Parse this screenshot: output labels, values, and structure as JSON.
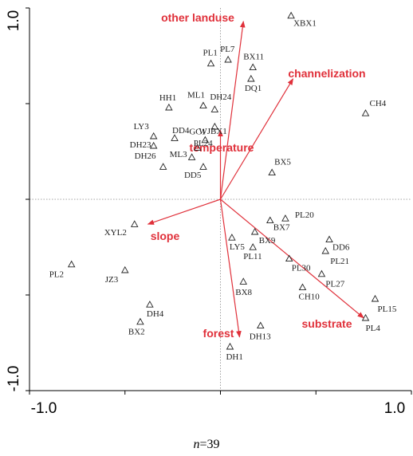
{
  "chart_data": {
    "type": "scatter",
    "title": "",
    "xlabel": "",
    "ylabel": "",
    "xlim": [
      -1.0,
      1.0
    ],
    "ylim": [
      -1.0,
      1.0
    ],
    "x_tick_labels": [
      "-1.0",
      "1.0"
    ],
    "y_tick_labels": [
      "1.0",
      "-1.0"
    ],
    "reference_lines": "dotted lines at x=0 and y=0",
    "point_marker": "open-triangle",
    "arrow_color": "#e0303a",
    "points": [
      {
        "label": "XBX1",
        "x": 0.37,
        "y": 0.96
      },
      {
        "label": "PL1",
        "x": -0.05,
        "y": 0.71
      },
      {
        "label": "PL7",
        "x": 0.04,
        "y": 0.73
      },
      {
        "label": "BX11",
        "x": 0.17,
        "y": 0.69
      },
      {
        "label": "DQ1",
        "x": 0.16,
        "y": 0.63
      },
      {
        "label": "ML1",
        "x": -0.09,
        "y": 0.49
      },
      {
        "label": "DH24",
        "x": -0.03,
        "y": 0.47
      },
      {
        "label": "HH1",
        "x": -0.27,
        "y": 0.48
      },
      {
        "label": "WJBX1",
        "x": -0.03,
        "y": 0.38
      },
      {
        "label": "LY3",
        "x": -0.35,
        "y": 0.33
      },
      {
        "label": "DD4",
        "x": -0.24,
        "y": 0.32
      },
      {
        "label": "GC1",
        "x": -0.08,
        "y": 0.31
      },
      {
        "label": "DH23",
        "x": -0.35,
        "y": 0.28
      },
      {
        "label": "ML3",
        "x": -0.15,
        "y": 0.22
      },
      {
        "label": "PL24",
        "x": -0.12,
        "y": 0.27
      },
      {
        "label": "DD5",
        "x": -0.09,
        "y": 0.17
      },
      {
        "label": "DH26",
        "x": -0.3,
        "y": 0.17
      },
      {
        "label": "BX5",
        "x": 0.27,
        "y": 0.14
      },
      {
        "label": "CH4",
        "x": 0.76,
        "y": 0.45
      },
      {
        "label": "PL20",
        "x": 0.34,
        "y": -0.1
      },
      {
        "label": "BX7",
        "x": 0.26,
        "y": -0.11
      },
      {
        "label": "BX9",
        "x": 0.18,
        "y": -0.17
      },
      {
        "label": "LY5",
        "x": 0.06,
        "y": -0.2
      },
      {
        "label": "PL11",
        "x": 0.17,
        "y": -0.25
      },
      {
        "label": "DD6",
        "x": 0.57,
        "y": -0.21
      },
      {
        "label": "PL21",
        "x": 0.55,
        "y": -0.27
      },
      {
        "label": "PL30",
        "x": 0.36,
        "y": -0.31
      },
      {
        "label": "PL27",
        "x": 0.53,
        "y": -0.39
      },
      {
        "label": "CH10",
        "x": 0.43,
        "y": -0.46
      },
      {
        "label": "PL15",
        "x": 0.81,
        "y": -0.52
      },
      {
        "label": "PL4",
        "x": 0.76,
        "y": -0.62
      },
      {
        "label": "XYL2",
        "x": -0.45,
        "y": -0.13
      },
      {
        "label": "PL2",
        "x": -0.78,
        "y": -0.34
      },
      {
        "label": "JZ3",
        "x": -0.5,
        "y": -0.37
      },
      {
        "label": "DH4",
        "x": -0.37,
        "y": -0.55
      },
      {
        "label": "BX2",
        "x": -0.42,
        "y": -0.64
      },
      {
        "label": "BX8",
        "x": 0.12,
        "y": -0.43
      },
      {
        "label": "DH13",
        "x": 0.21,
        "y": -0.66
      },
      {
        "label": "DH1",
        "x": 0.05,
        "y": -0.77
      }
    ],
    "vectors": [
      {
        "label": "other landuse",
        "x": 0.12,
        "y": 0.93
      },
      {
        "label": "channelization",
        "x": 0.38,
        "y": 0.63
      },
      {
        "label": "temperature",
        "x": 0.0,
        "y": 0.36
      },
      {
        "label": "slope",
        "x": -0.38,
        "y": -0.13
      },
      {
        "label": "forest",
        "x": 0.1,
        "y": -0.72
      },
      {
        "label": "substrate",
        "x": 0.75,
        "y": -0.62
      }
    ]
  },
  "caption": {
    "n_symbol": "n",
    "n_text": "=39"
  }
}
